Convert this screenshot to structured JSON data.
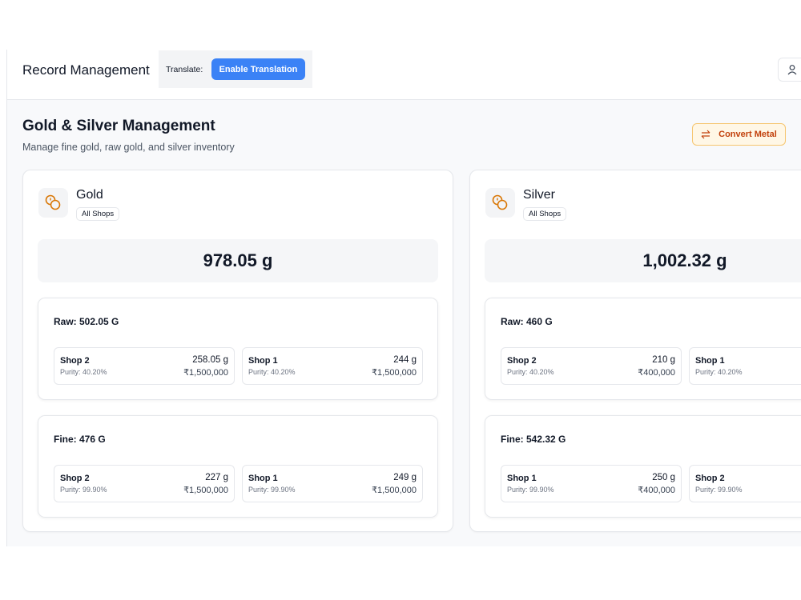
{
  "header": {
    "title": "Record Management",
    "translate_label": "Translate:",
    "translate_button": "Enable Translation"
  },
  "page": {
    "title": "Gold & Silver Management",
    "subtitle": "Manage fine gold, raw gold, and silver inventory",
    "convert_button": "Convert Metal"
  },
  "cards": [
    {
      "name": "Gold",
      "badge": "All Shops",
      "total": "978.05 g",
      "sections": [
        {
          "label": "Raw: 502.05 G",
          "items": [
            {
              "shop": "Shop 2",
              "purity": "Purity: 40.20%",
              "weight": "258.05 g",
              "price": "₹1,500,000"
            },
            {
              "shop": "Shop 1",
              "purity": "Purity: 40.20%",
              "weight": "244 g",
              "price": "₹1,500,000"
            }
          ]
        },
        {
          "label": "Fine: 476 G",
          "items": [
            {
              "shop": "Shop 2",
              "purity": "Purity: 99.90%",
              "weight": "227 g",
              "price": "₹1,500,000"
            },
            {
              "shop": "Shop 1",
              "purity": "Purity: 99.90%",
              "weight": "249 g",
              "price": "₹1,500,000"
            }
          ]
        }
      ]
    },
    {
      "name": "Silver",
      "badge": "All Shops",
      "total": "1,002.32 g",
      "sections": [
        {
          "label": "Raw: 460 G",
          "items": [
            {
              "shop": "Shop 2",
              "purity": "Purity: 40.20%",
              "weight": "210 g",
              "price": "₹400,000"
            },
            {
              "shop": "Shop 1",
              "purity": "Purity: 40.20%"
            }
          ]
        },
        {
          "label": "Fine: 542.32 G",
          "items": [
            {
              "shop": "Shop 1",
              "purity": "Purity: 99.90%",
              "weight": "250 g",
              "price": "₹400,000"
            },
            {
              "shop": "Shop 2",
              "purity": "Purity: 99.90%"
            }
          ]
        }
      ]
    }
  ]
}
